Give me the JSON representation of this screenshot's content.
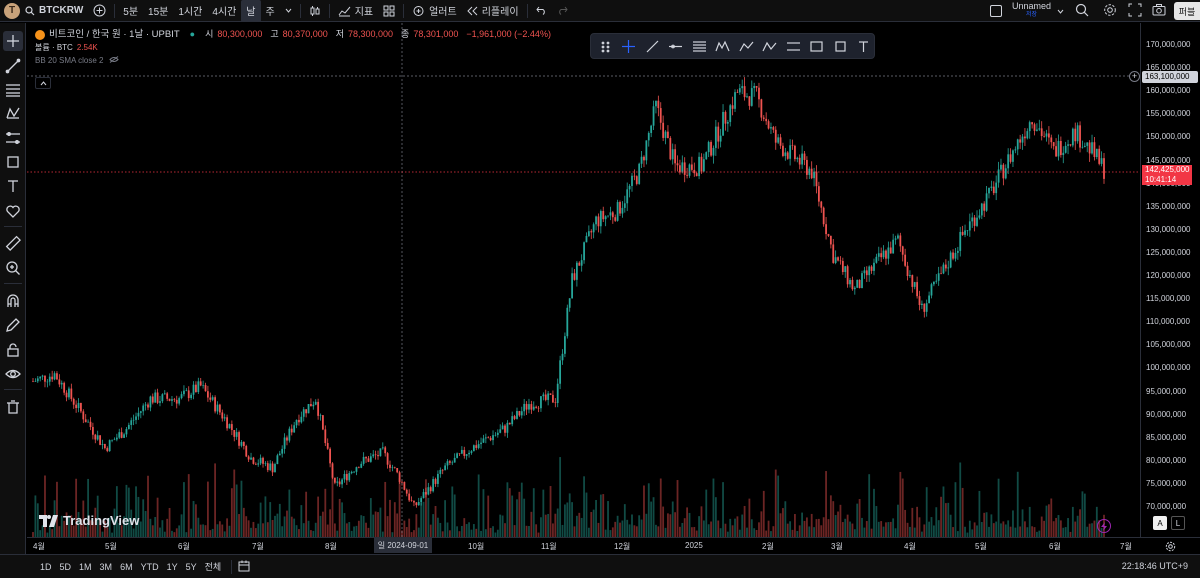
{
  "topbar": {
    "avatar_letter": "T",
    "symbol": "BTCKRW",
    "timeframes": [
      "5분",
      "15분",
      "1시간",
      "4시간",
      "날",
      "주"
    ],
    "active_timeframe": "날",
    "indicators_label": "지표",
    "alerts_label": "얼러트",
    "replay_label": "리플레이",
    "layout_name": "Unnamed",
    "layout_status": "저장",
    "publish_label": "퍼블"
  },
  "legend": {
    "title": "비트코인 / 한국 원 · 1날 · UPBIT",
    "open_key": "시",
    "open_val": "80,300,000",
    "high_key": "고",
    "high_val": "80,370,000",
    "low_key": "저",
    "low_val": "78,300,000",
    "close_key": "종",
    "close_val": "78,301,000",
    "change": "−1,961,000 (−2.44%)",
    "volume_label": "볼륨 · BTC",
    "volume_val": "2.54K",
    "bb_label": "BB 20 SMA close 2"
  },
  "price_axis": {
    "labels": [
      "170,000,000",
      "165,000,000",
      "160,000,000",
      "155,000,000",
      "150,000,000",
      "145,000,000",
      "140,000,000",
      "135,000,000",
      "130,000,000",
      "125,000,000",
      "120,000,000",
      "115,000,000",
      "110,000,000",
      "105,000,000",
      "100,000,000",
      "95,000,000",
      "90,000,000",
      "85,000,000",
      "80,000,000",
      "75,000,000",
      "70,000,000"
    ],
    "hover_price": "163,100,000",
    "last_price": "142,425,000",
    "countdown": "10:41:14",
    "auto_btn": "A",
    "log_btn": "L"
  },
  "time_axis": {
    "labels": [
      "4월",
      "5월",
      "6월",
      "7월",
      "8월",
      "10월",
      "11월",
      "12월",
      "2025",
      "2월",
      "3월",
      "4월",
      "5월",
      "6월",
      "7월"
    ],
    "crosshair_date": "일 2024-09-01"
  },
  "bottombar": {
    "ranges": [
      "1D",
      "5D",
      "1M",
      "3M",
      "6M",
      "YTD",
      "1Y",
      "5Y",
      "전체"
    ],
    "clock": "22:18:46 UTC+9"
  },
  "branding": {
    "logo_text": "TradingView"
  },
  "colors": {
    "up": "#26a69a",
    "down": "#ef5350",
    "last_price": "#f23645",
    "background": "#000000"
  },
  "chart_data": {
    "type": "candlestick",
    "symbol": "BTCKRW",
    "interval": "1D",
    "ylim": [
      68000000,
      172000000
    ],
    "x_range": [
      "2024-04",
      "2025-07"
    ],
    "approx_close_path": [
      {
        "date": "2024-04-01",
        "price": 99500000
      },
      {
        "date": "2024-04-10",
        "price": 101000000
      },
      {
        "date": "2024-04-20",
        "price": 94000000
      },
      {
        "date": "2024-05-01",
        "price": 86000000
      },
      {
        "date": "2024-05-10",
        "price": 90000000
      },
      {
        "date": "2024-05-20",
        "price": 96000000
      },
      {
        "date": "2024-06-01",
        "price": 96000000
      },
      {
        "date": "2024-06-10",
        "price": 98500000
      },
      {
        "date": "2024-06-20",
        "price": 92000000
      },
      {
        "date": "2024-07-01",
        "price": 84000000
      },
      {
        "date": "2024-07-10",
        "price": 82000000
      },
      {
        "date": "2024-07-20",
        "price": 92000000
      },
      {
        "date": "2024-07-28",
        "price": 96000000
      },
      {
        "date": "2024-08-05",
        "price": 78000000
      },
      {
        "date": "2024-08-15",
        "price": 83000000
      },
      {
        "date": "2024-08-25",
        "price": 85000000
      },
      {
        "date": "2024-09-01",
        "price": 80000000
      },
      {
        "date": "2024-09-07",
        "price": 74000000
      },
      {
        "date": "2024-09-20",
        "price": 82000000
      },
      {
        "date": "2024-10-01",
        "price": 86000000
      },
      {
        "date": "2024-10-15",
        "price": 90000000
      },
      {
        "date": "2024-10-25",
        "price": 95000000
      },
      {
        "date": "2024-11-05",
        "price": 96000000
      },
      {
        "date": "2024-11-12",
        "price": 120000000
      },
      {
        "date": "2024-11-22",
        "price": 132000000
      },
      {
        "date": "2024-12-01",
        "price": 134000000
      },
      {
        "date": "2024-12-10",
        "price": 142000000
      },
      {
        "date": "2024-12-17",
        "price": 155000000
      },
      {
        "date": "2024-12-25",
        "price": 143000000
      },
      {
        "date": "2025-01-05",
        "price": 143000000
      },
      {
        "date": "2025-01-20",
        "price": 158000000
      },
      {
        "date": "2025-01-28",
        "price": 157000000
      },
      {
        "date": "2025-02-05",
        "price": 148000000
      },
      {
        "date": "2025-02-20",
        "price": 142000000
      },
      {
        "date": "2025-03-01",
        "price": 125000000
      },
      {
        "date": "2025-03-10",
        "price": 118000000
      },
      {
        "date": "2025-03-20",
        "price": 124000000
      },
      {
        "date": "2025-03-28",
        "price": 128000000
      },
      {
        "date": "2025-04-07",
        "price": 114000000
      },
      {
        "date": "2025-04-15",
        "price": 121000000
      },
      {
        "date": "2025-04-25",
        "price": 130000000
      },
      {
        "date": "2025-05-05",
        "price": 137000000
      },
      {
        "date": "2025-05-15",
        "price": 146000000
      },
      {
        "date": "2025-05-23",
        "price": 153000000
      },
      {
        "date": "2025-06-01",
        "price": 146000000
      },
      {
        "date": "2025-06-10",
        "price": 150000000
      },
      {
        "date": "2025-06-17",
        "price": 146000000
      },
      {
        "date": "2025-06-22",
        "price": 142425000
      }
    ]
  }
}
